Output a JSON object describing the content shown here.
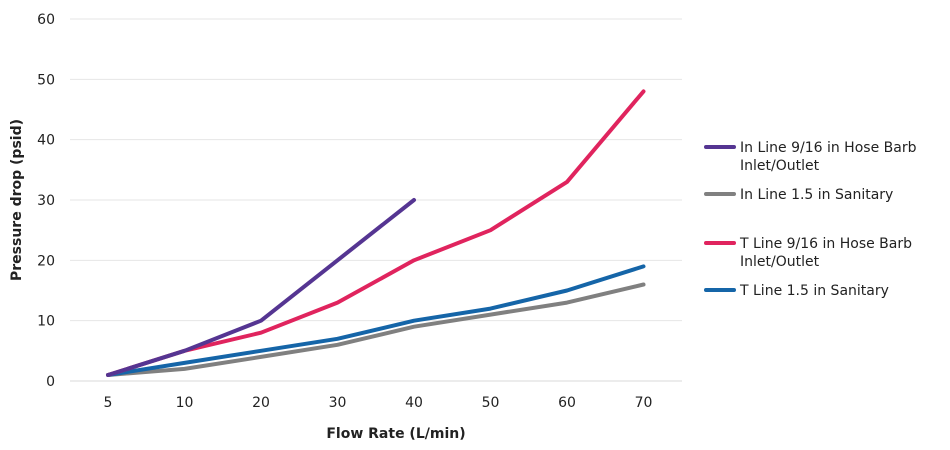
{
  "chart_data": {
    "type": "line",
    "categories": [
      "5",
      "10",
      "20",
      "30",
      "40",
      "50",
      "60",
      "70"
    ],
    "xlabel": "Flow Rate (L/min)",
    "ylabel": "Pressure drop (psid)",
    "ylim": [
      0,
      60
    ],
    "yticks": [
      "0",
      "10",
      "20",
      "30",
      "40",
      "50",
      "60"
    ],
    "grid": "horizontal",
    "legend_position": "right",
    "series": [
      {
        "name": "In Line 9/16 in Hose Barb Inlet/Outlet",
        "legend_lines": [
          "In Line 9/16 in Hose Barb",
          "Inlet/Outlet"
        ],
        "color": "#553592",
        "values": [
          1,
          5,
          10,
          20,
          30,
          null,
          null,
          null
        ]
      },
      {
        "name": "In Line 1.5 in Sanitary",
        "legend_lines": [
          "In Line 1.5 in Sanitary"
        ],
        "color": "#808080",
        "values": [
          1,
          2,
          4,
          6,
          9,
          11,
          13,
          16
        ]
      },
      {
        "name": "T Line 9/16 in Hose Barb Inlet/Outlet",
        "legend_lines": [
          "T Line 9/16 in Hose Barb",
          "Inlet/Outlet"
        ],
        "color": "#E0245E",
        "values": [
          1,
          5,
          8,
          13,
          20,
          25,
          33,
          48
        ]
      },
      {
        "name": "T Line 1.5 in Sanitary",
        "legend_lines": [
          "T Line 1.5 in Sanitary"
        ],
        "color": "#1565A8",
        "values": [
          1,
          3,
          5,
          7,
          10,
          12,
          15,
          19
        ]
      }
    ]
  }
}
